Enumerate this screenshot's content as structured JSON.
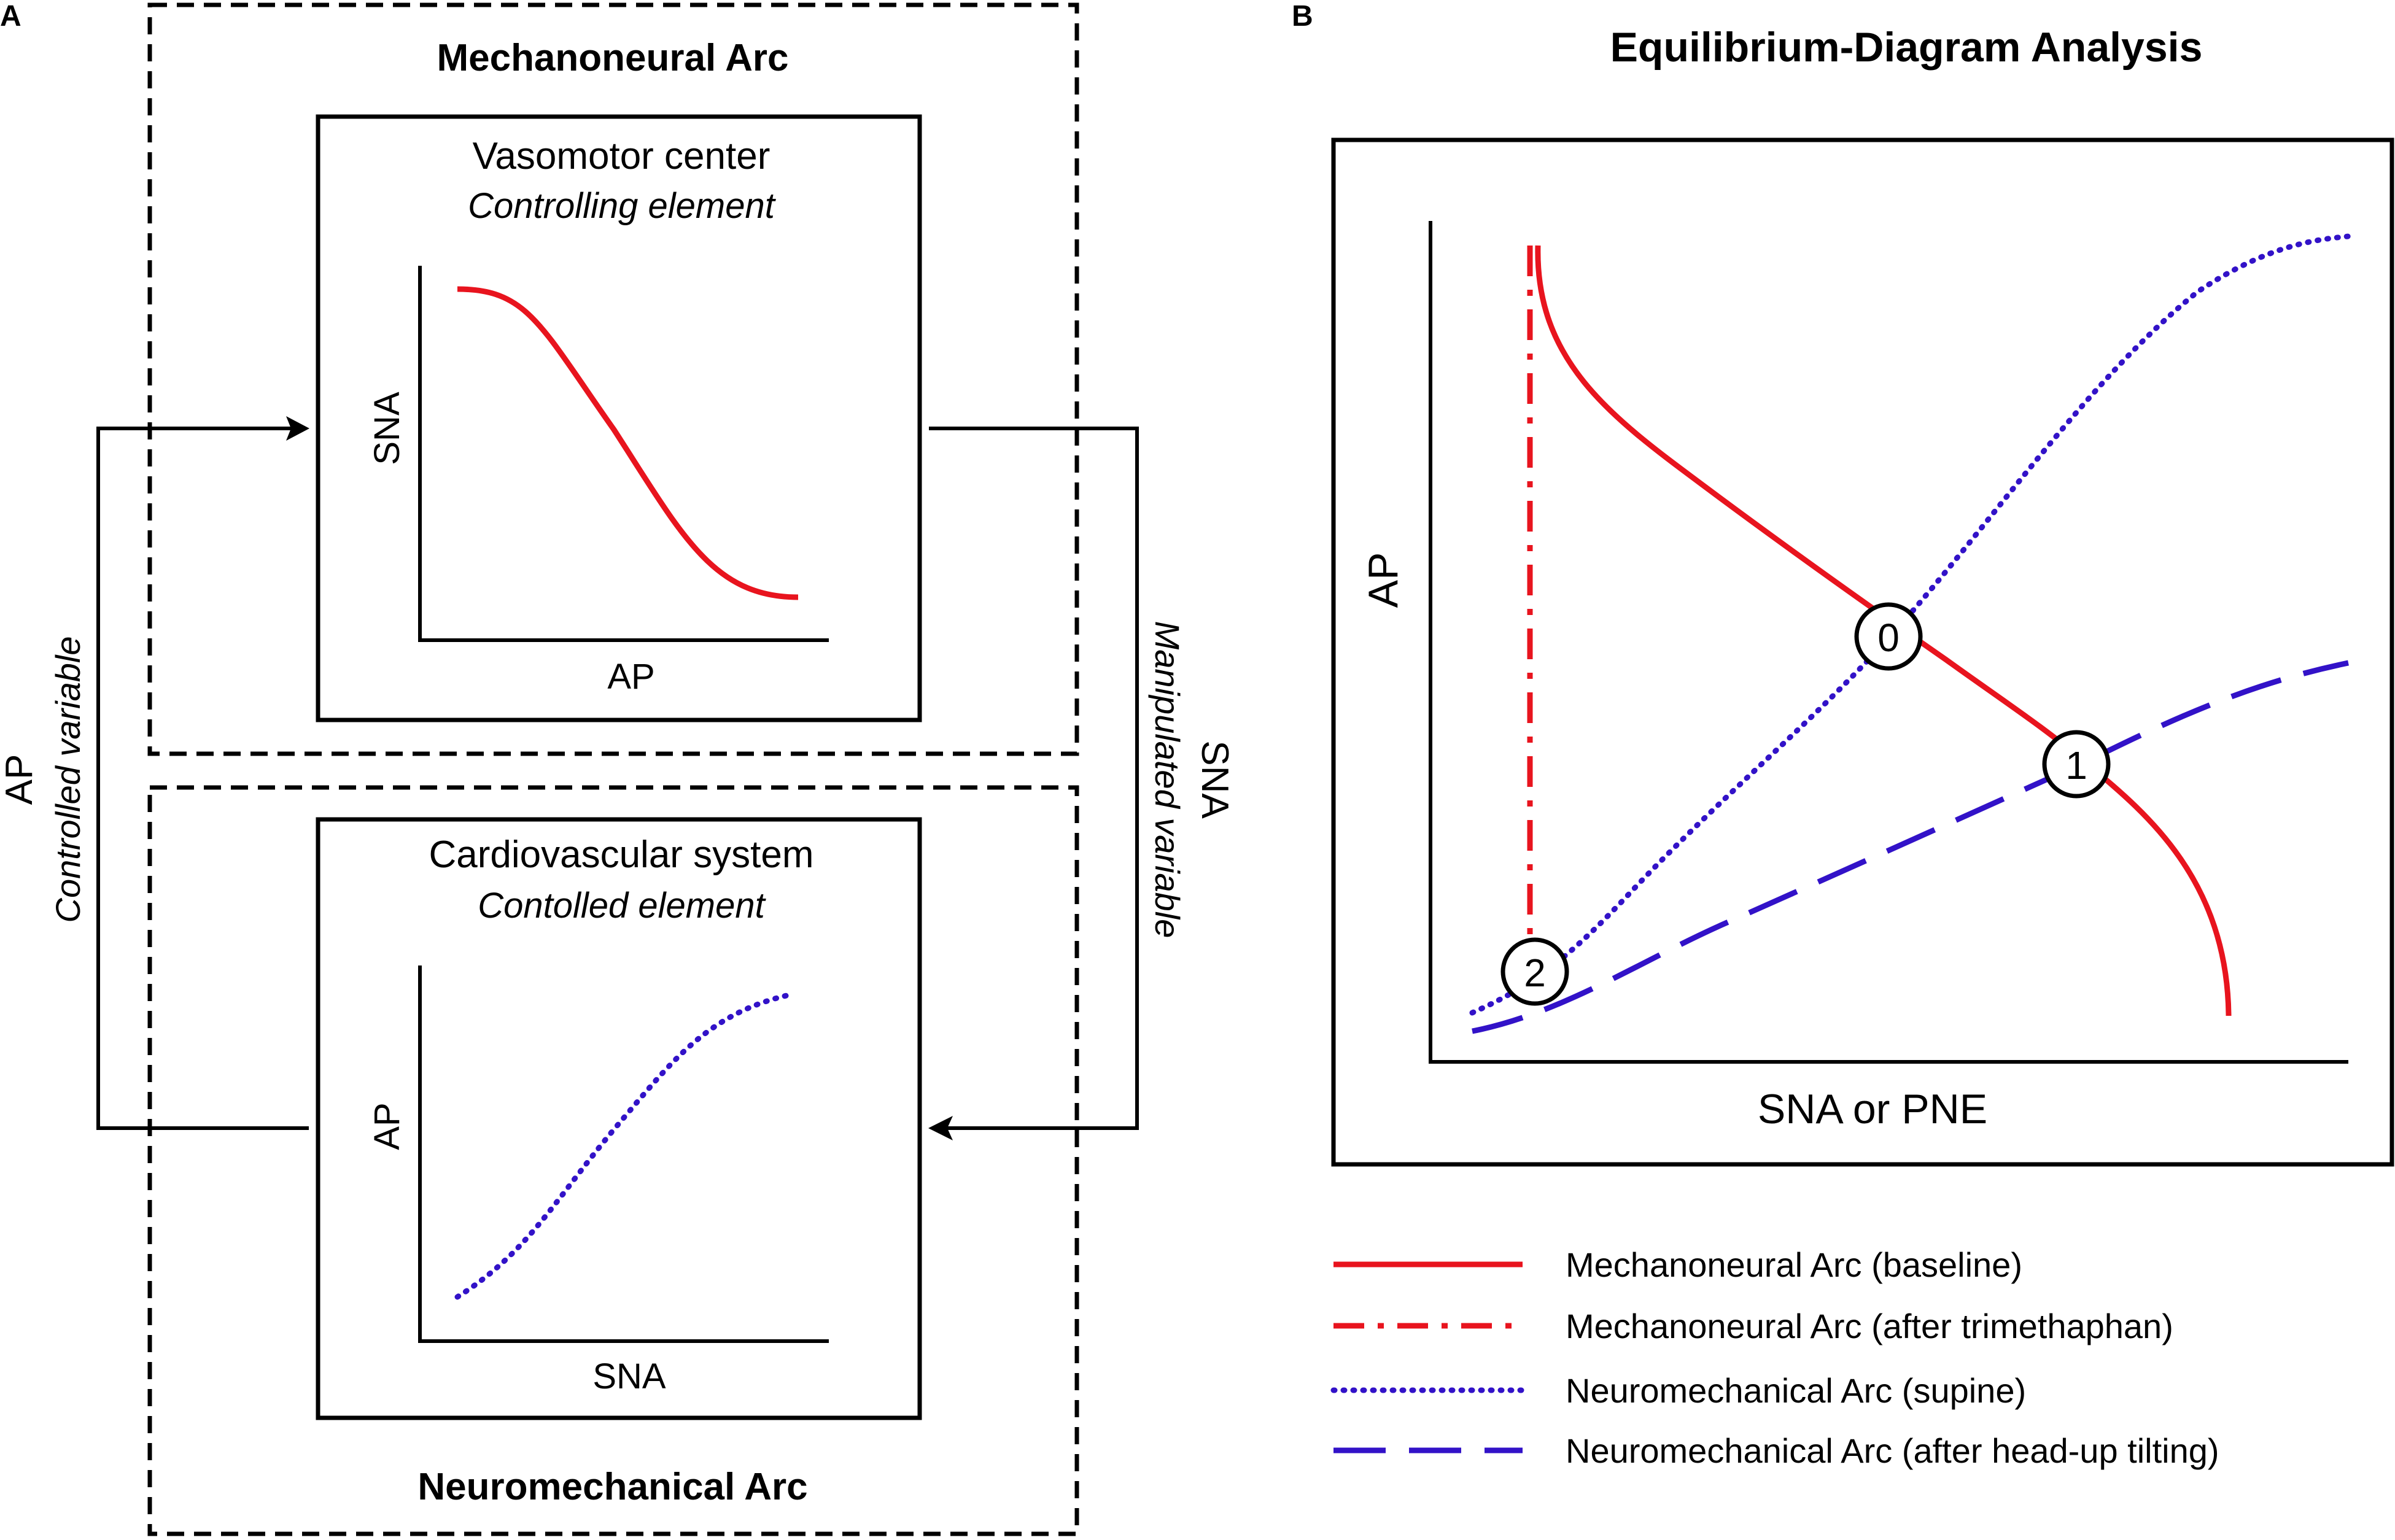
{
  "panel_a": {
    "panel_label": "A",
    "mechanoneural_title": "Mechanoneural Arc",
    "neuromechanical_title": "Neuromechanical Arc",
    "controller_box": {
      "title": "Vasomotor center",
      "subtitle": "Controlling element",
      "y_label": "SNA",
      "x_label": "AP"
    },
    "controlled_box": {
      "title": "Cardiovascular system",
      "subtitle": "Contolled element",
      "y_label": "AP",
      "x_label": "SNA"
    },
    "left_variable": {
      "name": "AP",
      "role": "Controlled variable"
    },
    "right_variable": {
      "name": "SNA",
      "role": "Manipulated variable"
    }
  },
  "panel_b": {
    "panel_label": "B",
    "title": "Equilibrium-Diagram Analysis",
    "y_label": "AP",
    "x_label": "SNA or PNE",
    "points": [
      {
        "label": "0"
      },
      {
        "label": "1"
      },
      {
        "label": "2"
      }
    ],
    "legend": [
      {
        "label": "Mechanoneural Arc (baseline)",
        "color": "#e8141e",
        "style": "solid"
      },
      {
        "label": "Mechanoneural Arc (after trimethaphan)",
        "color": "#e8141e",
        "style": "dash-dot"
      },
      {
        "label": "Neuromechanical Arc (supine)",
        "color": "#3212c8",
        "style": "dotted"
      },
      {
        "label": "Neuromechanical Arc (after head-up tilting)",
        "color": "#3212c8",
        "style": "dashed"
      }
    ]
  }
}
